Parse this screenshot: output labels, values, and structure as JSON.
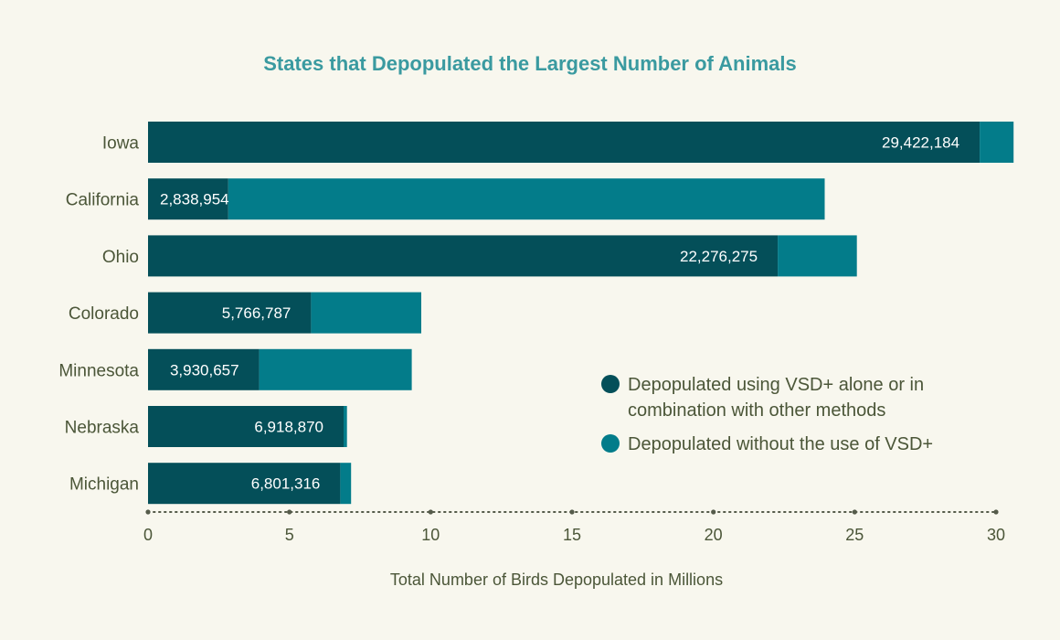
{
  "chart_data": {
    "type": "bar",
    "orientation": "horizontal",
    "stacked": true,
    "title": "States that Depopulated the Largest Number of Animals",
    "xlabel": "Total Number of Birds Depopulated in Millions",
    "ylabel": "",
    "xlim": [
      0,
      30
    ],
    "xticks": [
      0,
      5,
      10,
      15,
      20,
      25,
      30
    ],
    "categories": [
      "Iowa",
      "California",
      "Ohio",
      "Colorado",
      "Minnesota",
      "Nebraska",
      "Michigan"
    ],
    "series": [
      {
        "name": "Depopulated using VSD+ alone or in combination with other methods",
        "values": [
          29.422184,
          2.838954,
          22.276275,
          5.766787,
          3.930657,
          6.91887,
          6.801316
        ],
        "labels": [
          "29,422,184",
          "2,838,954",
          "22,276,275",
          "5,766,787",
          "3,930,657",
          "6,918,870",
          "6,801,316"
        ],
        "color": "#044f59"
      },
      {
        "name": "Depopulated without the use of VSD+",
        "values": [
          1.2,
          21.1,
          2.8,
          3.9,
          5.4,
          0.12,
          0.38
        ],
        "color": "#037c8a"
      }
    ],
    "legend_lines": [
      [
        "Depopulated using VSD+ alone or in",
        "combination with other methods"
      ],
      [
        "Depopulated without the use of VSD+"
      ]
    ],
    "legend_position": "lower-right",
    "grid": false
  },
  "colors": {
    "background": "#f8f7ee",
    "title": "#3a9aa0",
    "text": "#4b5638",
    "axis": "#555b4a",
    "bar_label": "#ffffff"
  }
}
